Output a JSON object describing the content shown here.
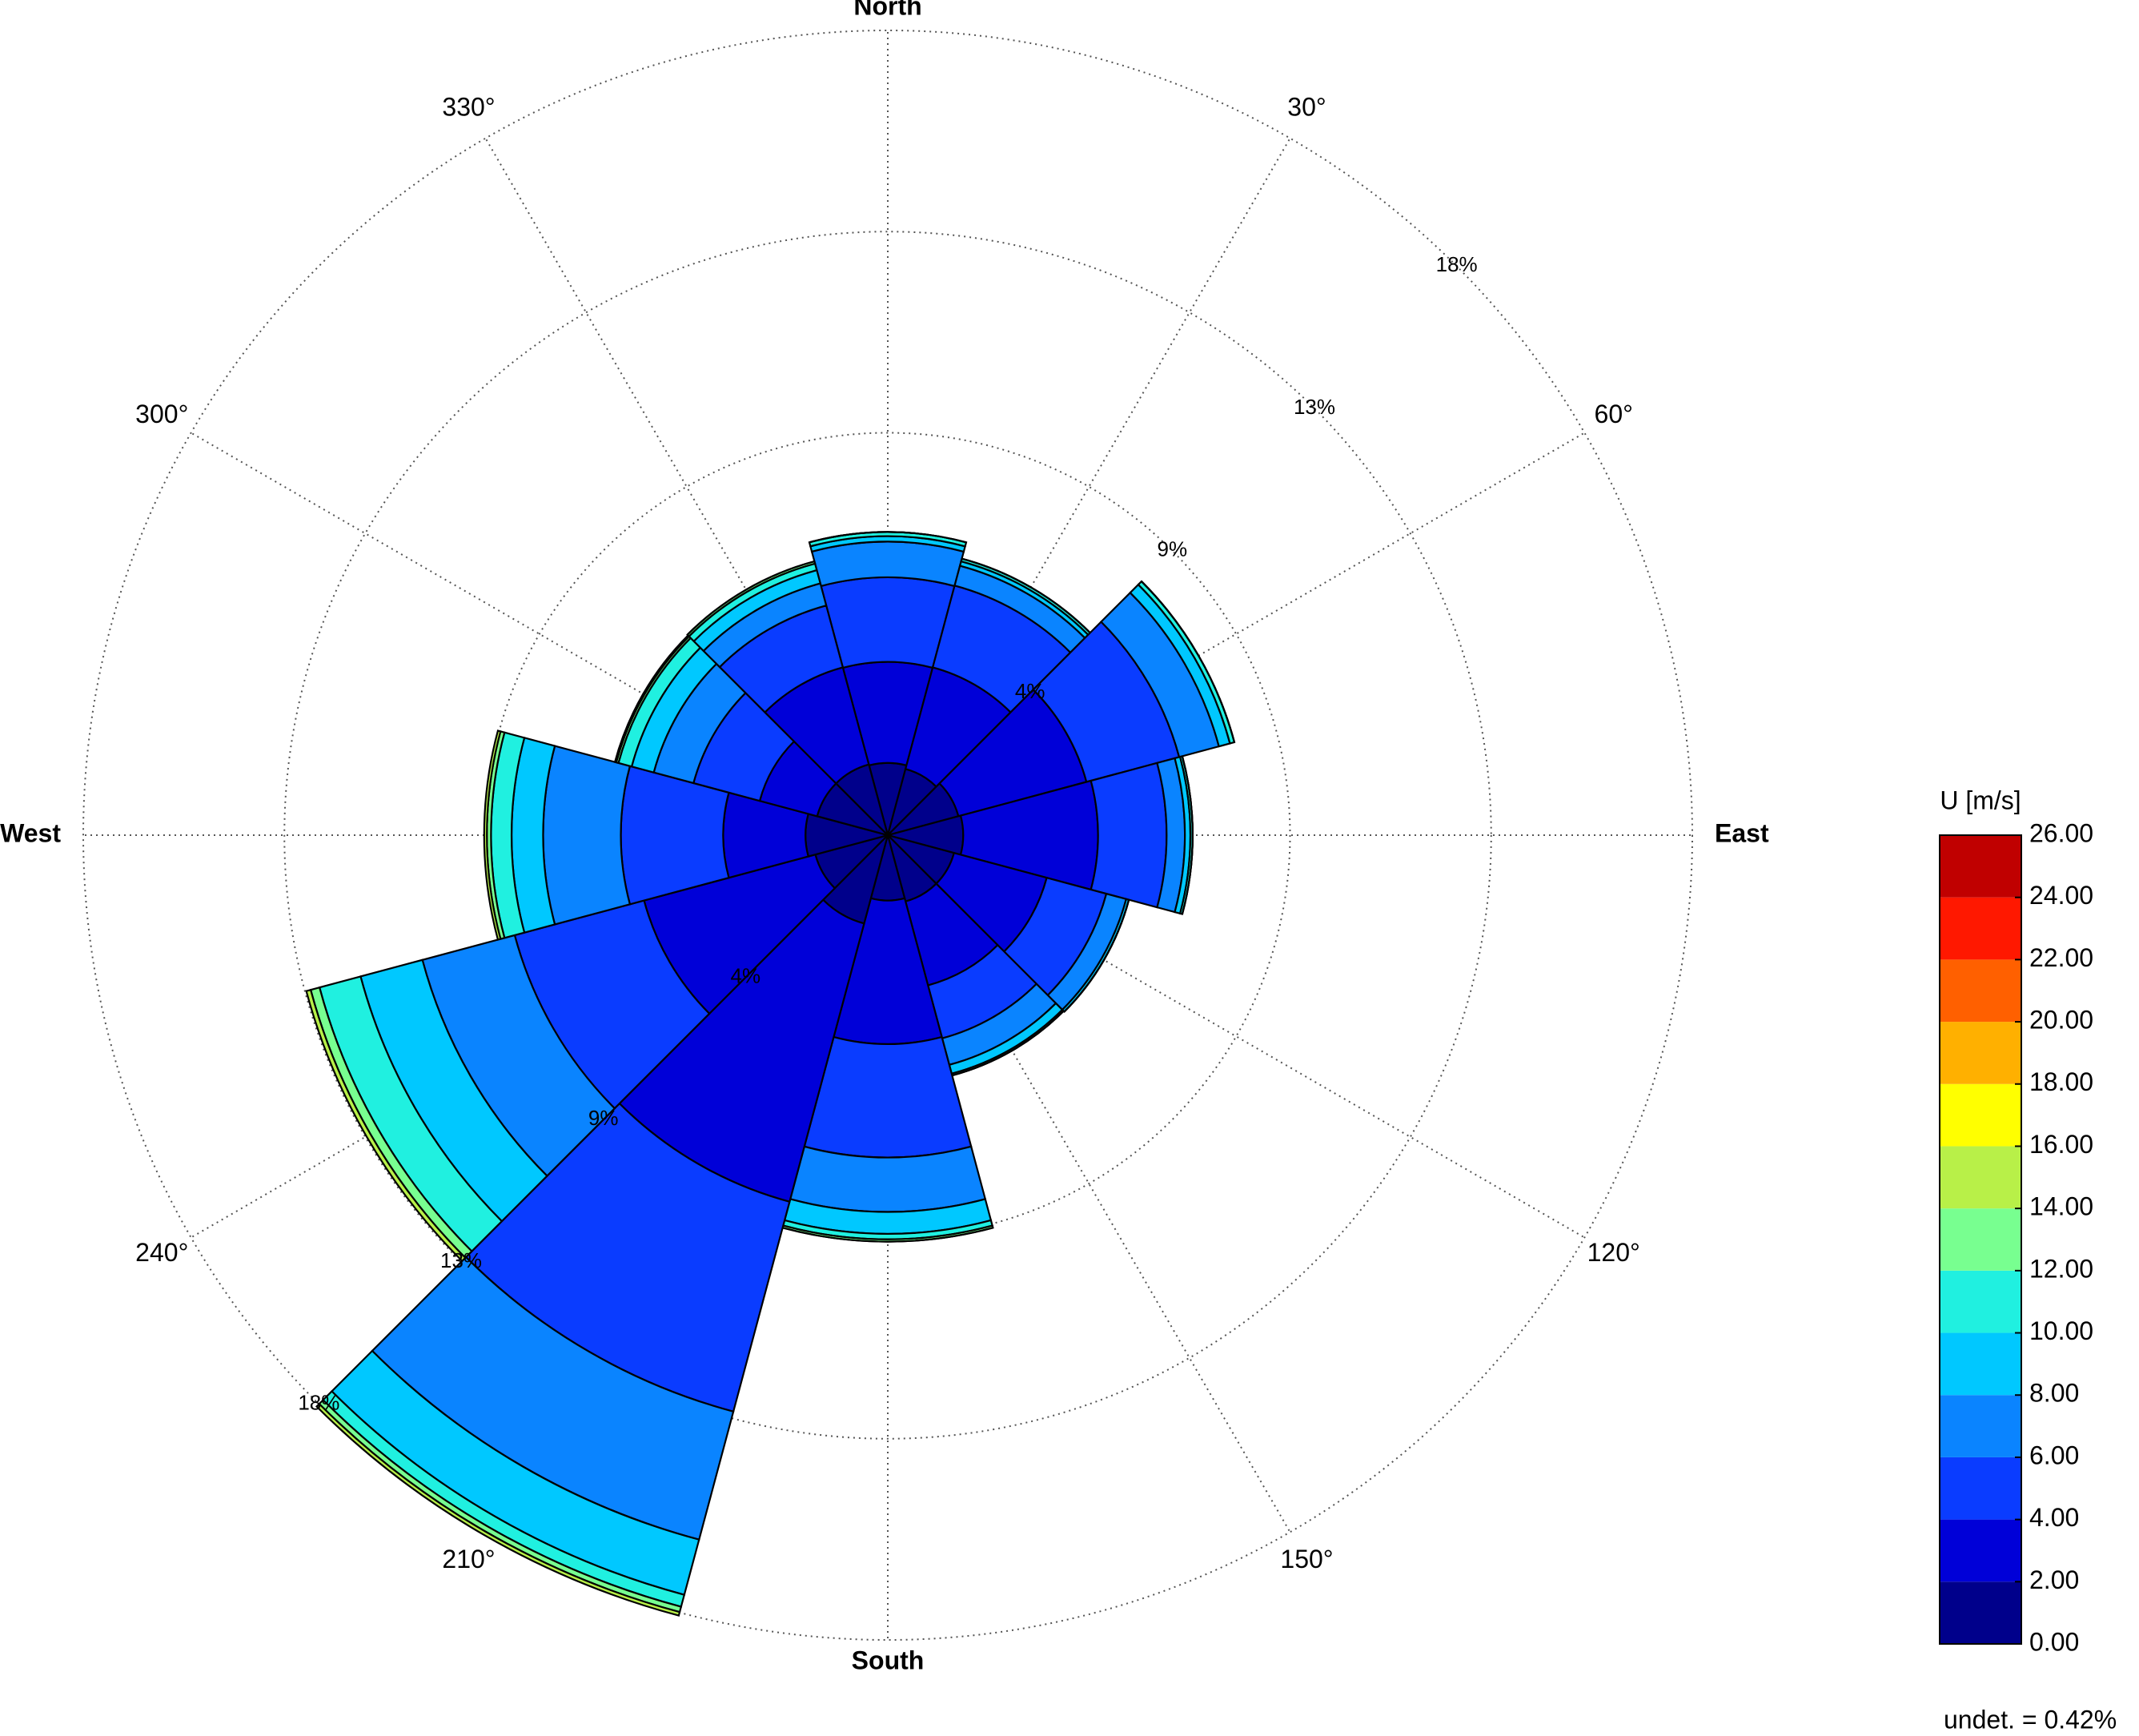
{
  "chart_data": {
    "type": "windrose",
    "categories": [
      "North",
      "30°",
      "60°",
      "East",
      "120°",
      "150°",
      "South",
      "210°",
      "240°",
      "West",
      "300°",
      "330°"
    ],
    "series": [
      {
        "color": "#00008b",
        "values": [
          1.58,
          1.5,
          1.6,
          1.65,
          1.5,
          1.5,
          1.43,
          2.0,
          1.64,
          1.8,
          1.6,
          1.6
        ]
      },
      {
        "color": "#0000d8",
        "values": [
          2.21,
          2.3,
          2.9,
          2.95,
          2.1,
          1.9,
          3.14,
          6.3,
          3.88,
          1.8,
          1.3,
          2.2
        ]
      },
      {
        "color": "#0a3cff",
        "values": [
          1.85,
          1.85,
          2.1,
          1.5,
          1.35,
          1.2,
          2.48,
          4.75,
          2.93,
          2.24,
          1.5,
          1.4
        ]
      },
      {
        "color": "#0a84ff",
        "values": [
          0.78,
          0.45,
          0.9,
          0.4,
          0.45,
          0.6,
          1.19,
          2.9,
          2.09,
          1.7,
          0.9,
          0.5
        ]
      },
      {
        "color": "#00c8ff",
        "values": [
          0.12,
          0.1,
          0.25,
          0.12,
          0.06,
          0.2,
          0.48,
          1.25,
          1.4,
          0.69,
          0.5,
          0.3
        ]
      },
      {
        "color": "#20f0e0",
        "values": [
          0.09,
          0.06,
          0.1,
          0.05,
          0,
          0.04,
          0.12,
          0.27,
          0.93,
          0.45,
          0.3,
          0.15
        ]
      },
      {
        "color": "#78ff90",
        "values": [
          0,
          0,
          0,
          0,
          0,
          0,
          0.05,
          0.12,
          0.2,
          0.09,
          0.05,
          0.05
        ]
      },
      {
        "color": "#b8f048",
        "values": [
          0,
          0,
          0,
          0,
          0,
          0,
          0,
          0.08,
          0.1,
          0.06,
          0.03,
          0
        ]
      }
    ],
    "ylim": [
      0,
      17.6
    ],
    "yticks": [
      {
        "value": 4.4,
        "label": "4%"
      },
      {
        "value": 8.8,
        "label": "9%"
      },
      {
        "value": 13.2,
        "label": "13%"
      },
      {
        "value": 17.6,
        "label": "18%"
      }
    ],
    "grid": true,
    "colorbar": {
      "title": "U [m/s]",
      "ticks": [
        {
          "value": 0,
          "label": "0.00"
        },
        {
          "value": 2,
          "label": "2.00"
        },
        {
          "value": 4,
          "label": "4.00"
        },
        {
          "value": 6,
          "label": "6.00"
        },
        {
          "value": 8,
          "label": "8.00"
        },
        {
          "value": 10,
          "label": "10.00"
        },
        {
          "value": 12,
          "label": "12.00"
        },
        {
          "value": 14,
          "label": "14.00"
        },
        {
          "value": 16,
          "label": "16.00"
        },
        {
          "value": 18,
          "label": "18.00"
        },
        {
          "value": 20,
          "label": "20.00"
        },
        {
          "value": 22,
          "label": "22.00"
        },
        {
          "value": 24,
          "label": "24.00"
        },
        {
          "value": 26,
          "label": "26.00"
        }
      ],
      "colors": [
        "#00008b",
        "#0000d8",
        "#0a3cff",
        "#0a84ff",
        "#00c8ff",
        "#20f0e0",
        "#78ff90",
        "#b8f048",
        "#ffff00",
        "#ffb000",
        "#ff6000",
        "#ff1800",
        "#c00000"
      ]
    },
    "note": "undet. = 0.42%"
  }
}
